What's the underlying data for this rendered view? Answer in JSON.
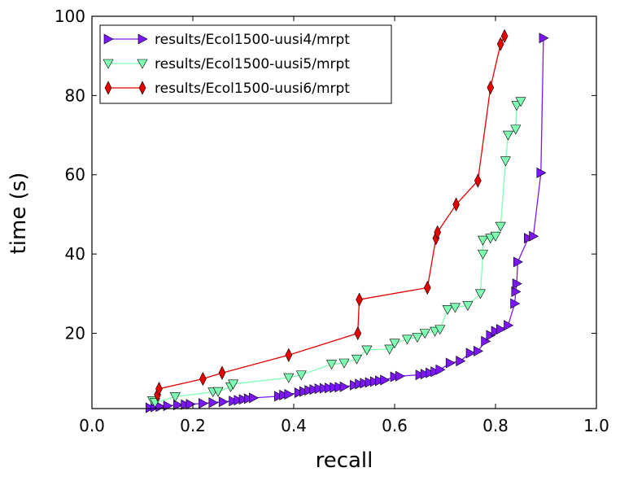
{
  "chart_data": {
    "type": "line",
    "xlabel": "recall",
    "ylabel": "time (s)",
    "xlim": [
      0.0,
      1.0
    ],
    "ylim": [
      1,
      100
    ],
    "x_ticks": [
      "0.0",
      "0.2",
      "0.4",
      "0.6",
      "0.8",
      "1.0"
    ],
    "y_ticks": [
      "20",
      "40",
      "60",
      "80",
      "100"
    ],
    "grid": false,
    "legend_position": "top-left",
    "series": [
      {
        "name": "results/Ecol1500-uusi4/mrpt",
        "color": "#7b16f5",
        "marker": "triangle-right",
        "x": [
          0.115,
          0.125,
          0.135,
          0.15,
          0.17,
          0.185,
          0.195,
          0.22,
          0.24,
          0.26,
          0.28,
          0.29,
          0.3,
          0.31,
          0.32,
          0.37,
          0.38,
          0.39,
          0.41,
          0.42,
          0.43,
          0.44,
          0.45,
          0.46,
          0.47,
          0.48,
          0.49,
          0.5,
          0.52,
          0.53,
          0.54,
          0.55,
          0.56,
          0.57,
          0.58,
          0.6,
          0.61,
          0.65,
          0.66,
          0.67,
          0.68,
          0.69,
          0.71,
          0.73,
          0.75,
          0.765,
          0.78,
          0.79,
          0.8,
          0.81,
          0.825,
          0.838,
          0.84,
          0.842,
          0.844,
          0.865,
          0.875,
          0.89,
          0.895
        ],
        "y": [
          1.2,
          1.4,
          1.5,
          1.7,
          1.9,
          2.0,
          2.1,
          2.3,
          2.5,
          2.7,
          2.9,
          3.1,
          3.3,
          3.5,
          3.7,
          4.1,
          4.4,
          4.6,
          5.0,
          5.3,
          5.6,
          5.8,
          6.0,
          6.1,
          6.2,
          6.3,
          6.4,
          6.5,
          6.9,
          7.2,
          7.4,
          7.6,
          7.8,
          8.0,
          8.2,
          9.0,
          9.2,
          9.5,
          9.7,
          10.0,
          10.3,
          10.8,
          12.5,
          13.0,
          15.0,
          15.5,
          18.0,
          19.5,
          20.5,
          21.0,
          22.0,
          27.5,
          30.5,
          32.5,
          38.0,
          44.0,
          44.5,
          60.5,
          94.5
        ]
      },
      {
        "name": "results/Ecol1500-uusi5/mrpt",
        "color": "#80ffb4",
        "marker": "triangle-down",
        "x": [
          0.12,
          0.125,
          0.165,
          0.24,
          0.25,
          0.275,
          0.28,
          0.39,
          0.415,
          0.475,
          0.5,
          0.525,
          0.545,
          0.59,
          0.6,
          0.625,
          0.645,
          0.66,
          0.68,
          0.69,
          0.705,
          0.72,
          0.745,
          0.77,
          0.775,
          0.775,
          0.79,
          0.8,
          0.81,
          0.82,
          0.825,
          0.84,
          0.842,
          0.85
        ],
        "y": [
          3.0,
          2.5,
          4.0,
          5.2,
          5.3,
          6.5,
          7.2,
          8.8,
          9.5,
          12.2,
          12.5,
          13.5,
          15.8,
          16.0,
          17.5,
          18.5,
          19.0,
          20.0,
          20.5,
          21.0,
          26.0,
          26.5,
          27.0,
          30.0,
          40.0,
          43.5,
          44.0,
          44.5,
          47.0,
          63.5,
          70.0,
          71.5,
          77.5,
          78.5
        ]
      },
      {
        "name": "results/Ecol1500-uusi6/mrpt",
        "color": "#e60000",
        "marker": "thin-diamond",
        "x": [
          0.13,
          0.133,
          0.22,
          0.258,
          0.39,
          0.527,
          0.53,
          0.665,
          0.682,
          0.685,
          0.722,
          0.765,
          0.79,
          0.81,
          0.818
        ],
        "y": [
          4.5,
          6.0,
          8.5,
          10.0,
          14.5,
          20.0,
          28.5,
          31.5,
          44.0,
          45.5,
          52.5,
          58.5,
          82.0,
          93.0,
          95.0
        ]
      }
    ]
  }
}
